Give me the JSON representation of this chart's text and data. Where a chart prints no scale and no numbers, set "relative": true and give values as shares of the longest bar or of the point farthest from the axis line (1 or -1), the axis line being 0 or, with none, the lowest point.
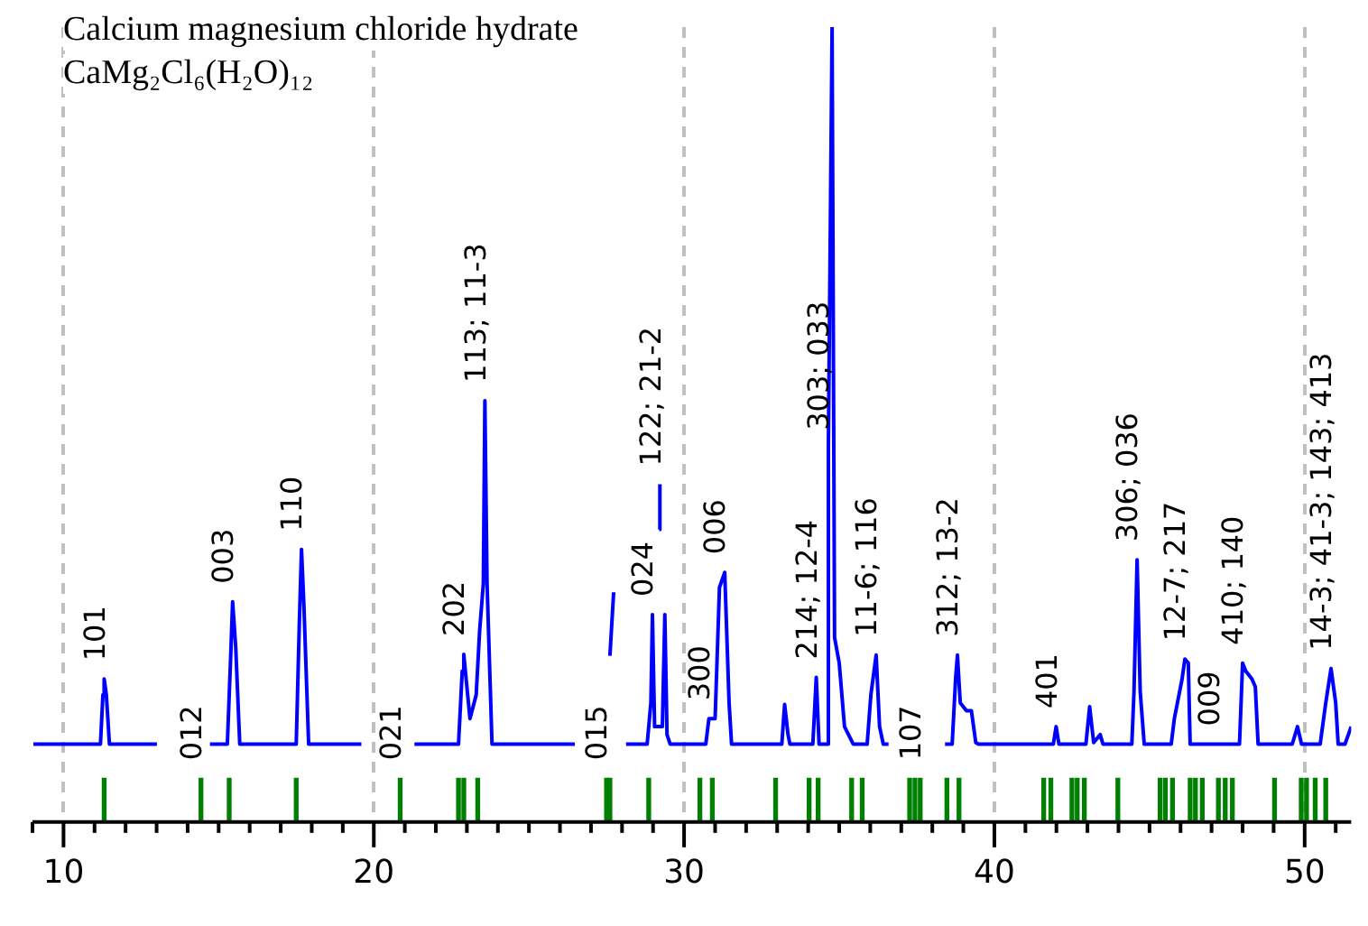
{
  "chart_data": {
    "type": "line",
    "title": "Calcium magnesium chloride hydrate",
    "subtitle": "CaMg₂Cl₆(H₂O)₁₂",
    "relative": true,
    "grid": "x",
    "xlim": [
      9,
      51.5
    ],
    "xticks": [
      {
        "value": 9,
        "label": null
      },
      10,
      {
        "value": 11,
        "label": null
      },
      {
        "value": 12,
        "label": null
      },
      {
        "value": 13,
        "label": null
      },
      {
        "value": 14,
        "label": null
      },
      {
        "value": 15,
        "label": null
      },
      {
        "value": 16,
        "label": null
      },
      {
        "value": 17,
        "label": null
      },
      {
        "value": 18,
        "label": null
      },
      {
        "value": 19,
        "label": null
      },
      20,
      {
        "value": 21,
        "label": null
      },
      {
        "value": 22,
        "label": null
      },
      {
        "value": 23,
        "label": null
      },
      {
        "value": 24,
        "label": null
      },
      {
        "value": 25,
        "label": null
      },
      {
        "value": 26,
        "label": null
      },
      {
        "value": 27,
        "label": null
      },
      {
        "value": 28,
        "label": null
      },
      {
        "value": 29,
        "label": null
      },
      30,
      {
        "value": 31,
        "label": null
      },
      {
        "value": 32,
        "label": null
      },
      {
        "value": 33,
        "label": null
      },
      {
        "value": 34,
        "label": null
      },
      {
        "value": 35,
        "label": null
      },
      {
        "value": 36,
        "label": null
      },
      {
        "value": 37,
        "label": null
      },
      {
        "value": 38,
        "label": null
      },
      {
        "value": 39,
        "label": null
      },
      40,
      {
        "value": 41,
        "label": null
      },
      {
        "value": 42,
        "label": null
      },
      {
        "value": 43,
        "label": null
      },
      {
        "value": 44,
        "label": null
      },
      {
        "value": 45,
        "label": null
      },
      {
        "value": 46,
        "label": null
      },
      {
        "value": 47,
        "label": null
      },
      {
        "value": 48,
        "label": null
      },
      {
        "value": 49,
        "label": null
      },
      50,
      {
        "value": 51,
        "label": null
      }
    ],
    "series": [
      {
        "color": "#0000ff",
        "x": [
          9.03,
          11.19,
          11.27,
          11.31,
          11.38,
          11.48,
          13.01,
          13.8,
          14.72,
          15.28,
          15.38,
          15.45,
          15.55,
          15.68,
          17.5,
          17.6,
          17.67,
          17.75,
          17.9,
          19.6,
          20.5,
          21.31,
          22.73,
          22.85,
          22.9,
          23.0,
          23.1,
          23.3,
          23.41,
          23.53,
          23.58,
          23.65,
          23.81,
          26.48,
          27.0,
          27.61,
          27.73,
          27.9,
          28.13,
          28.81,
          28.93,
          28.98,
          29.05,
          29.3,
          29.38,
          29.45,
          29.55,
          30.7,
          30.8,
          31.0,
          31.14,
          31.31,
          31.45,
          31.53,
          33.15,
          33.24,
          33.35,
          33.41,
          34.15,
          34.26,
          34.35,
          34.6,
          34.65,
          34.77,
          34.85,
          35.0,
          35.17,
          35.45,
          35.9,
          36.02,
          36.19,
          36.3,
          36.42,
          36.59,
          37.5,
          38.41,
          38.64,
          38.75,
          38.81,
          38.9,
          39.1,
          39.26,
          39.4,
          39.49,
          41.9,
          41.99,
          42.08,
          42.95,
          43.07,
          43.2,
          43.41,
          43.5,
          44.43,
          44.5,
          44.6,
          44.7,
          44.83,
          45.7,
          45.8,
          45.95,
          46.05,
          46.14,
          46.25,
          46.31,
          47.22,
          47.9,
          48.0,
          48.1,
          48.3,
          48.41,
          48.5,
          49.6,
          49.77,
          49.9,
          50.5,
          50.68,
          50.85,
          51.0,
          51.08,
          51.3,
          51.5
        ],
        "values": [
          0.098,
          0.098,
          0.16,
          0.18,
          0.16,
          0.098,
          0.098,
          null,
          0.098,
          0.098,
          0.2,
          0.277,
          0.22,
          0.098,
          0.098,
          0.25,
          0.343,
          0.27,
          0.098,
          0.098,
          null,
          0.098,
          0.098,
          0.19,
          0.211,
          0.17,
          0.13,
          0.16,
          0.24,
          0.3,
          0.53,
          0.3,
          0.098,
          0.098,
          null,
          0.209,
          0.289,
          null,
          0.098,
          0.098,
          0.15,
          0.261,
          0.12,
          0.12,
          0.261,
          0.11,
          0.098,
          0.098,
          0.13,
          0.13,
          0.295,
          0.314,
          0.15,
          0.098,
          0.098,
          0.148,
          0.11,
          0.098,
          0.098,
          0.182,
          0.098,
          0.098,
          0.47,
          1.0,
          0.232,
          0.2,
          0.12,
          0.098,
          0.098,
          0.16,
          0.21,
          0.12,
          0.098,
          0.098,
          null,
          0.098,
          0.098,
          0.18,
          0.21,
          0.15,
          0.14,
          0.14,
          0.1,
          0.098,
          0.098,
          0.12,
          0.098,
          0.098,
          0.145,
          0.1,
          0.11,
          0.098,
          0.098,
          0.164,
          0.33,
          0.164,
          0.098,
          0.098,
          0.13,
          0.16,
          0.18,
          0.205,
          0.2,
          0.098,
          0.098,
          0.098,
          0.2,
          0.19,
          0.18,
          0.17,
          0.098,
          0.098,
          0.12,
          0.098,
          0.098,
          0.15,
          0.193,
          0.15,
          0.098,
          0.098,
          0.12
        ]
      },
      {
        "color": "#0000ff",
        "x": [
          29.2,
          29.22
        ],
        "values": [
          0.368,
          0.425
        ]
      },
      {
        "type": "bar",
        "color": "#008000",
        "x": [
          11.31,
          14.43,
          15.34,
          17.5,
          20.85,
          22.73,
          22.9,
          23.35,
          27.5,
          27.61,
          28.86,
          30.51,
          30.91,
          32.95,
          34.03,
          34.32,
          35.4,
          35.74,
          37.27,
          37.44,
          37.61,
          38.47,
          38.86,
          41.59,
          41.82,
          42.5,
          42.67,
          42.9,
          43.98,
          45.34,
          45.51,
          45.74,
          46.31,
          46.48,
          46.7,
          47.22,
          47.44,
          47.67,
          49.03,
          49.89,
          50.06,
          50.34,
          50.68
        ],
        "values": [
          0.055,
          0.055,
          0.055,
          0.055,
          0.055,
          0.055,
          0.055,
          0.055,
          0.055,
          0.055,
          0.055,
          0.055,
          0.055,
          0.055,
          0.055,
          0.055,
          0.055,
          0.055,
          0.055,
          0.055,
          0.055,
          0.055,
          0.055,
          0.055,
          0.055,
          0.055,
          0.055,
          0.055,
          0.055,
          0.055,
          0.055,
          0.055,
          0.055,
          0.055,
          0.055,
          0.055,
          0.055,
          0.055,
          0.055,
          0.055,
          0.055,
          0.055,
          0.055
        ]
      }
    ],
    "annotations": [
      {
        "text": "101",
        "x": 11.31,
        "y": 0.18
      },
      {
        "text": "012",
        "x": 14.43,
        "y": 0.055
      },
      {
        "text": "003",
        "x": 15.45,
        "y": 0.277
      },
      {
        "text": "110",
        "x": 17.67,
        "y": 0.343
      },
      {
        "text": "021",
        "x": 20.85,
        "y": 0.055
      },
      {
        "text": "202",
        "x": 22.9,
        "y": 0.211
      },
      {
        "text": "113; 11-3",
        "x": 23.58,
        "y": 0.53
      },
      {
        "text": "015",
        "x": 27.5,
        "y": 0.055
      },
      {
        "text": "024",
        "x": 28.98,
        "y": 0.261
      },
      {
        "text": "122; 21-2",
        "x": 29.22,
        "y": 0.425
      },
      {
        "text": "300",
        "x": 30.8,
        "y": 0.13
      },
      {
        "text": "006",
        "x": 31.31,
        "y": 0.314
      },
      {
        "text": "214; 12-4",
        "x": 34.26,
        "y": 0.182
      },
      {
        "text": "303; 033",
        "x": 34.65,
        "y": 0.47
      },
      {
        "text": "11-6; 116",
        "x": 36.19,
        "y": 0.21
      },
      {
        "text": "107",
        "x": 37.61,
        "y": 0.055
      },
      {
        "text": "312; 13-2",
        "x": 38.81,
        "y": 0.21
      },
      {
        "text": "401",
        "x": 41.99,
        "y": 0.12
      },
      {
        "text": "306; 036",
        "x": 44.6,
        "y": 0.33
      },
      {
        "text": "12-7; 217",
        "x": 46.14,
        "y": 0.205
      },
      {
        "text": "009",
        "x": 47.22,
        "y": 0.098
      },
      {
        "text": "410; 140",
        "x": 48.0,
        "y": 0.2
      },
      {
        "text": "14-3; 41-3; 143; 413",
        "x": 50.85,
        "y": 0.193
      }
    ]
  }
}
